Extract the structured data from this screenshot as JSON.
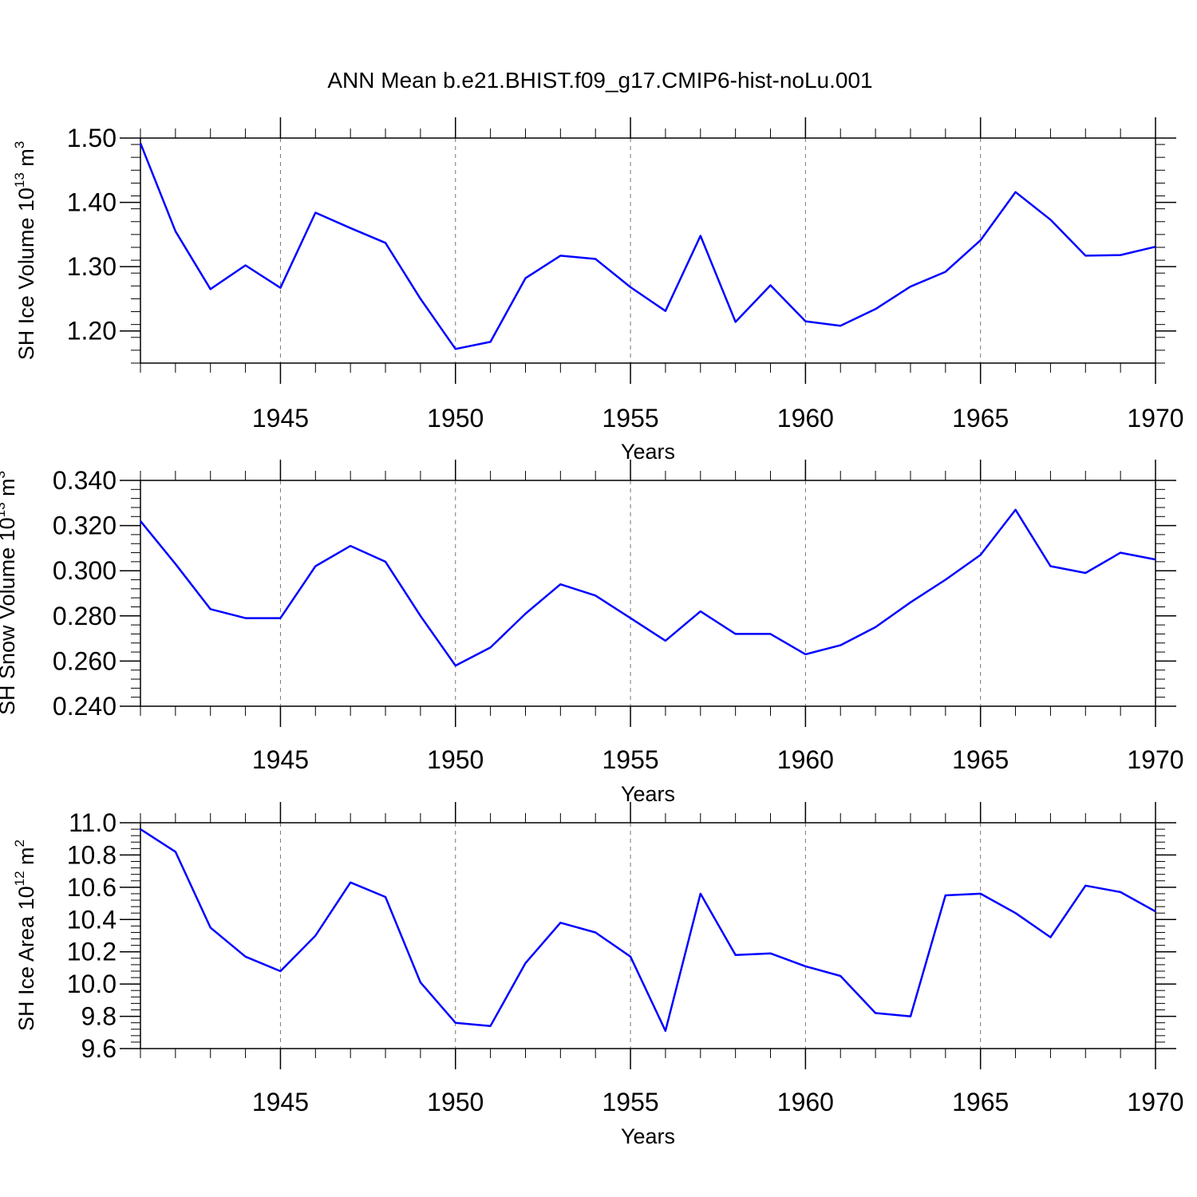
{
  "title": "ANN Mean b.e21.BHIST.f09_g17.CMIP6-hist-noLu.001",
  "chart_data": [
    {
      "type": "line",
      "xlabel": "Years",
      "ylabel": {
        "prefix": "SH Ice Volume 10",
        "exp1": "13",
        "mid": " m",
        "exp2": "3"
      },
      "xlim": [
        1941,
        1970
      ],
      "ylim": [
        1.15,
        1.5
      ],
      "xticks": [
        1945,
        1950,
        1955,
        1960,
        1965,
        1970
      ],
      "yticks": [
        1.2,
        1.3,
        1.4,
        1.5
      ],
      "ytick_labels": [
        "1.20",
        "1.30",
        "1.40",
        "1.50"
      ],
      "grid": "dashed vertical at major x ticks",
      "color": "#0000ff",
      "x": [
        1941,
        1942,
        1943,
        1944,
        1945,
        1946,
        1947,
        1948,
        1949,
        1950,
        1951,
        1952,
        1953,
        1954,
        1955,
        1956,
        1957,
        1958,
        1959,
        1960,
        1961,
        1962,
        1963,
        1964,
        1965,
        1966,
        1967,
        1968,
        1969,
        1970
      ],
      "values": [
        1.492,
        1.355,
        1.265,
        1.302,
        1.267,
        1.384,
        1.36,
        1.337,
        1.25,
        1.172,
        1.183,
        1.282,
        1.317,
        1.312,
        1.268,
        1.231,
        1.348,
        1.214,
        1.271,
        1.215,
        1.208,
        1.234,
        1.269,
        1.292,
        1.341,
        1.416,
        1.373,
        1.317,
        1.318,
        1.331
      ]
    },
    {
      "type": "line",
      "xlabel": "Years",
      "ylabel": {
        "prefix": "SH Snow Volume 10",
        "exp1": "13",
        "mid": " m",
        "exp2": "3"
      },
      "xlim": [
        1941,
        1970
      ],
      "ylim": [
        0.24,
        0.34
      ],
      "xticks": [
        1945,
        1950,
        1955,
        1960,
        1965,
        1970
      ],
      "yticks": [
        0.24,
        0.26,
        0.28,
        0.3,
        0.32,
        0.34
      ],
      "ytick_labels": [
        "0.240",
        "0.260",
        "0.280",
        "0.300",
        "0.320",
        "0.340"
      ],
      "grid": "dashed vertical at major x ticks",
      "color": "#0000ff",
      "x": [
        1941,
        1942,
        1943,
        1944,
        1945,
        1946,
        1947,
        1948,
        1949,
        1950,
        1951,
        1952,
        1953,
        1954,
        1955,
        1956,
        1957,
        1958,
        1959,
        1960,
        1961,
        1962,
        1963,
        1964,
        1965,
        1966,
        1967,
        1968,
        1969,
        1970
      ],
      "values": [
        0.322,
        0.303,
        0.283,
        0.279,
        0.279,
        0.302,
        0.311,
        0.304,
        0.28,
        0.258,
        0.266,
        0.281,
        0.294,
        0.289,
        0.279,
        0.269,
        0.282,
        0.272,
        0.272,
        0.263,
        0.267,
        0.275,
        0.286,
        0.296,
        0.307,
        0.327,
        0.302,
        0.299,
        0.308,
        0.305
      ]
    },
    {
      "type": "line",
      "xlabel": "Years",
      "ylabel": {
        "prefix": "SH Ice Area 10",
        "exp1": "12",
        "mid": " m",
        "exp2": "2"
      },
      "xlim": [
        1941,
        1970
      ],
      "ylim": [
        9.6,
        11.0
      ],
      "xticks": [
        1945,
        1950,
        1955,
        1960,
        1965,
        1970
      ],
      "yticks": [
        9.6,
        9.8,
        10.0,
        10.2,
        10.4,
        10.6,
        10.8,
        11.0
      ],
      "ytick_labels": [
        "9.6",
        "9.8",
        "10.0",
        "10.2",
        "10.4",
        "10.6",
        "10.8",
        "11.0"
      ],
      "grid": "dashed vertical at major x ticks",
      "color": "#0000ff",
      "x": [
        1941,
        1942,
        1943,
        1944,
        1945,
        1946,
        1947,
        1948,
        1949,
        1950,
        1951,
        1952,
        1953,
        1954,
        1955,
        1956,
        1957,
        1958,
        1959,
        1960,
        1961,
        1962,
        1963,
        1964,
        1965,
        1966,
        1967,
        1968,
        1969,
        1970
      ],
      "values": [
        10.96,
        10.82,
        10.35,
        10.17,
        10.08,
        10.3,
        10.63,
        10.54,
        10.01,
        9.76,
        9.74,
        10.13,
        10.38,
        10.32,
        10.17,
        9.71,
        10.56,
        10.18,
        10.19,
        10.11,
        10.05,
        9.82,
        9.8,
        10.55,
        10.56,
        10.44,
        10.29,
        10.61,
        10.57,
        10.45
      ]
    }
  ]
}
